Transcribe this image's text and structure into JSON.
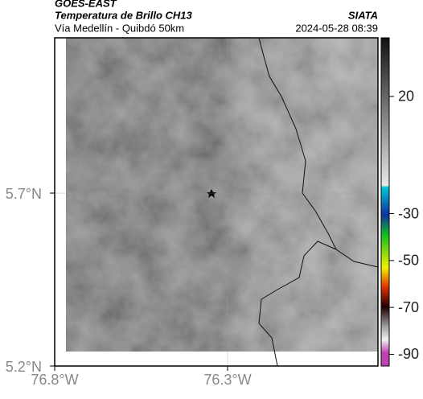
{
  "header": {
    "product": "GOES-EAST",
    "title": "Temperatura de Brillo CH13",
    "subtitle": "Vía Medellín - Quibdó 50km",
    "source": "SIATA",
    "datetime": "2024-05-28 08:39"
  },
  "map": {
    "lonlim": [
      -76.8,
      -75.865
    ],
    "latlim": [
      5.2,
      6.149
    ],
    "lat_ticks": [
      {
        "value": 5.7,
        "label": "5.7°N"
      },
      {
        "value": 5.2,
        "label": "5.2°N"
      }
    ],
    "lon_ticks": [
      {
        "value": -76.8,
        "label": "76.8°W"
      },
      {
        "value": -76.3,
        "label": "76.3°W"
      }
    ]
  },
  "colorbar": {
    "lim": [
      -95,
      45
    ],
    "ticks": [
      20,
      -30,
      -50,
      -70,
      -90
    ]
  }
}
